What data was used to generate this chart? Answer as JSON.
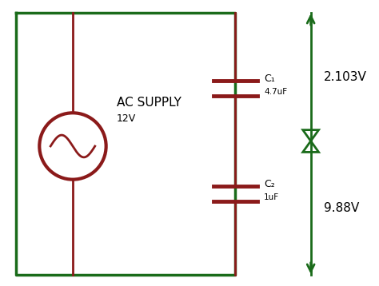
{
  "background_color": "#ffffff",
  "dark_green": "#1a6b1a",
  "dark_red": "#8b1a1a",
  "lw_main": 2.0,
  "lw_cap": 3.5,
  "lw_arrow": 2.0,
  "ac_supply_label": "AC SUPPLY",
  "ac_supply_voltage": "12V",
  "c1_label": "C₁",
  "c1_value": "4.7uF",
  "c2_label": "C₂",
  "c2_value": "1uF",
  "v1_label": "2.103V",
  "v2_label": "9.88V"
}
